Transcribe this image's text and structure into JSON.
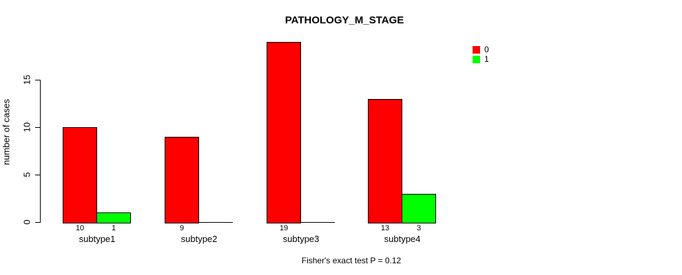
{
  "title": "PATHOLOGY_M_STAGE",
  "footer": "Fisher's exact test P = 0.12",
  "chart_data": {
    "type": "bar",
    "grouped": true,
    "title": "PATHOLOGY_M_STAGE",
    "categories": [
      "subtype1",
      "subtype2",
      "subtype3",
      "subtype4"
    ],
    "series": [
      {
        "name": "0",
        "color": "#ff0000",
        "values": [
          10,
          9,
          19,
          13
        ]
      },
      {
        "name": "1",
        "color": "#00ff00",
        "values": [
          1,
          0,
          0,
          3
        ]
      }
    ],
    "ylabel": "number of cases",
    "xlabel": "",
    "yticks": [
      0,
      5,
      10,
      15
    ],
    "ylim": [
      0,
      19
    ],
    "bar_value_labels": true,
    "zero_bars_drawn_as_baseline_line": true,
    "legend_position": "top-right",
    "legend_entries": [
      "0",
      "1"
    ],
    "annotation": "Fisher's exact test P = 0.12",
    "colors": {
      "series0": "#ff0000",
      "series1": "#00ff00",
      "axis": "#000000",
      "background": "#ffffff"
    }
  }
}
